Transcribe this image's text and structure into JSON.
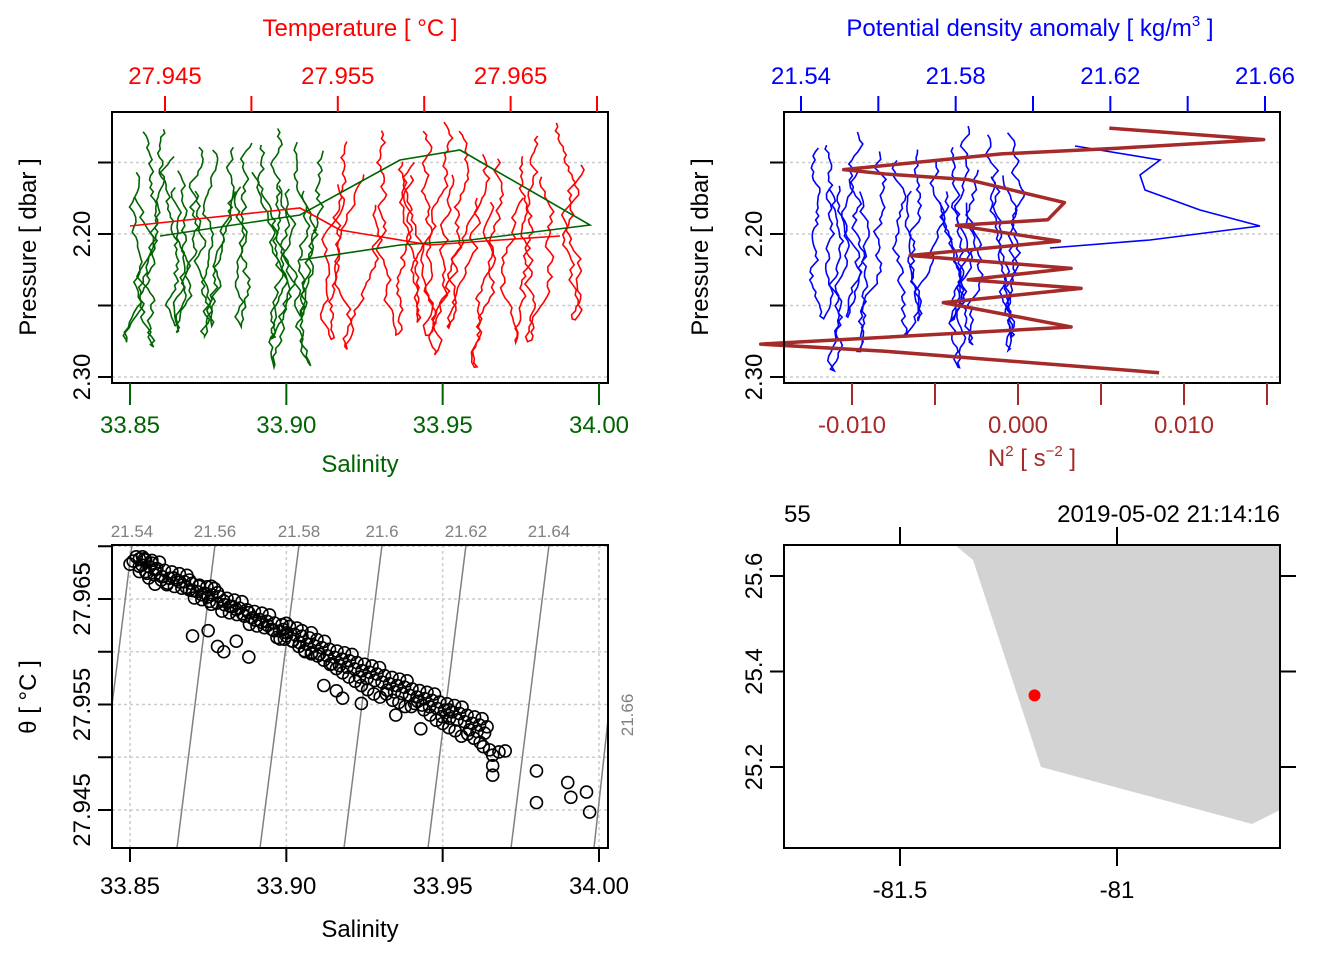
{
  "chart_data": [
    {
      "id": "profile-ts",
      "type": "line",
      "title": "",
      "top_axis_label": "Temperature [ °C ]",
      "top_axis_ticks": [
        "27.945",
        "",
        "27.955",
        "",
        "27.965",
        ""
      ],
      "top_axis_values": [
        27.945,
        27.95,
        27.955,
        27.96,
        27.965,
        27.97
      ],
      "top_axis_color": "#ff0000",
      "xlabel": "Salinity",
      "xlabel_color": "#006400",
      "x_ticks": [
        "33.85",
        "33.90",
        "33.95",
        "34.00"
      ],
      "x_tick_values": [
        33.85,
        33.9,
        33.95,
        34.0
      ],
      "xlim": [
        33.848,
        34.001
      ],
      "ylabel": "Pressure [ dbar ]",
      "y_ticks": [
        "",
        "2.20",
        "",
        "2.30"
      ],
      "y_tick_values": [
        2.15,
        2.2,
        2.25,
        2.3
      ],
      "ylim": [
        2.307,
        2.117
      ],
      "grid": "horizontal-dashed",
      "series": [
        {
          "name": "Salinity",
          "color": "#006400",
          "axis": "bottom"
        },
        {
          "name": "Temperature",
          "color": "#ff0000",
          "axis": "top"
        }
      ]
    },
    {
      "id": "profile-density-n2",
      "type": "line",
      "top_axis_label": "Potential density anomaly [ kg/m³ ]",
      "top_axis_ticks": [
        "21.54",
        "",
        "21.58",
        "",
        "21.62",
        "",
        "21.66"
      ],
      "top_axis_values": [
        21.54,
        21.56,
        21.58,
        21.6,
        21.62,
        21.64,
        21.66
      ],
      "top_axis_color": "#0000ff",
      "xlabel": "N² [ s⁻² ]",
      "xlabel_color": "#a52a2a",
      "x_ticks": [
        "-0.010",
        "",
        "0.000",
        "",
        "0.010",
        ""
      ],
      "x_tick_values": [
        -0.01,
        -0.005,
        0.0,
        0.005,
        0.01,
        0.015
      ],
      "ylabel": "Pressure [ dbar ]",
      "y_ticks": [
        "",
        "2.20",
        "",
        "2.30"
      ],
      "y_tick_values": [
        2.15,
        2.2,
        2.25,
        2.3
      ],
      "grid": "horizontal-dashed",
      "series": [
        {
          "name": "Potential density anomaly",
          "color": "#0000ff",
          "axis": "top"
        },
        {
          "name": "N2",
          "color": "#a52a2a",
          "axis": "bottom",
          "points": [
            [
              0.0055,
              2.126
            ],
            [
              0.0148,
              2.134
            ],
            [
              0.006,
              2.14
            ],
            [
              -0.001,
              2.144
            ],
            [
              -0.0105,
              2.155
            ],
            [
              -0.008,
              2.158
            ],
            [
              -0.003,
              2.162
            ],
            [
              0.0028,
              2.178
            ],
            [
              0.0018,
              2.19
            ],
            [
              -0.0037,
              2.194
            ],
            [
              0.0025,
              2.205
            ],
            [
              -0.0065,
              2.215
            ],
            [
              0.0032,
              2.224
            ],
            [
              -0.003,
              2.232
            ],
            [
              0.0038,
              2.238
            ],
            [
              -0.0045,
              2.248
            ],
            [
              0.0032,
              2.265
            ],
            [
              -0.0155,
              2.277
            ],
            [
              -0.008,
              2.282
            ],
            [
              0.0085,
              2.297
            ]
          ]
        }
      ]
    },
    {
      "id": "ts-diagram",
      "type": "scatter",
      "xlabel": "Salinity",
      "x_ticks": [
        "33.85",
        "33.90",
        "33.95",
        "34.00"
      ],
      "x_tick_values": [
        33.85,
        33.9,
        33.95,
        34.0
      ],
      "xlim": [
        33.844,
        34.002
      ],
      "ylabel": "θ [ °C ]",
      "y_ticks": [
        "",
        "27.965",
        "",
        "27.955",
        "",
        "27.945"
      ],
      "y_tick_values": [
        27.97,
        27.965,
        27.96,
        27.955,
        27.95,
        27.945
      ],
      "ylim": [
        27.9416,
        27.9705
      ],
      "grid": "both-dashed",
      "isopycnal_labels": [
        "21.54",
        "21.56",
        "21.58",
        "21.6",
        "21.62",
        "21.64",
        "21.66"
      ],
      "isopycnal_color": "#808080",
      "points": [
        [
          33.85,
          27.9683
        ],
        [
          33.851,
          27.9686
        ],
        [
          33.852,
          27.969
        ],
        [
          33.853,
          27.9688
        ],
        [
          33.854,
          27.969
        ],
        [
          33.855,
          27.9687
        ],
        [
          33.853,
          27.9681
        ],
        [
          33.855,
          27.9676
        ],
        [
          33.857,
          27.9684
        ],
        [
          33.858,
          27.9678
        ],
        [
          33.856,
          27.967
        ],
        [
          33.858,
          27.9664
        ],
        [
          33.86,
          27.9668
        ],
        [
          33.862,
          27.9665
        ],
        [
          33.864,
          27.967
        ],
        [
          33.866,
          27.9666
        ],
        [
          33.868,
          27.9661
        ],
        [
          33.87,
          27.9658
        ],
        [
          33.869,
          27.9668
        ],
        [
          33.872,
          27.9662
        ],
        [
          33.875,
          27.9652
        ],
        [
          33.876,
          27.9662
        ],
        [
          33.873,
          27.9654
        ],
        [
          33.876,
          27.9645
        ],
        [
          33.878,
          27.9656
        ],
        [
          33.88,
          27.9648
        ],
        [
          33.882,
          27.9643
        ],
        [
          33.884,
          27.964
        ],
        [
          33.886,
          27.9636
        ],
        [
          33.888,
          27.9637
        ],
        [
          33.89,
          27.963
        ],
        [
          33.892,
          27.9628
        ],
        [
          33.894,
          27.9625
        ],
        [
          33.896,
          27.962
        ],
        [
          33.898,
          27.9612
        ],
        [
          33.899,
          27.9621
        ],
        [
          33.9,
          27.9615
        ],
        [
          33.902,
          27.961
        ],
        [
          33.904,
          27.9605
        ],
        [
          33.905,
          27.962
        ],
        [
          33.906,
          27.96
        ],
        [
          33.908,
          27.9598
        ],
        [
          33.91,
          27.9596
        ],
        [
          33.912,
          27.9592
        ],
        [
          33.914,
          27.9588
        ],
        [
          33.916,
          27.9584
        ],
        [
          33.918,
          27.958
        ],
        [
          33.92,
          27.9576
        ],
        [
          33.922,
          27.9572
        ],
        [
          33.924,
          27.9568
        ],
        [
          33.926,
          27.9564
        ],
        [
          33.928,
          27.956
        ],
        [
          33.93,
          27.9557
        ],
        [
          33.932,
          27.956
        ],
        [
          33.934,
          27.9554
        ],
        [
          33.936,
          27.9552
        ],
        [
          33.938,
          27.9548
        ],
        [
          33.94,
          27.9548
        ],
        [
          33.942,
          27.9553
        ],
        [
          33.944,
          27.9545
        ],
        [
          33.946,
          27.954
        ],
        [
          33.948,
          27.9535
        ],
        [
          33.95,
          27.9532
        ],
        [
          33.952,
          27.9528
        ],
        [
          33.954,
          27.9525
        ],
        [
          33.956,
          27.952
        ],
        [
          33.958,
          27.9522
        ],
        [
          33.96,
          27.9518
        ],
        [
          33.962,
          27.9514
        ],
        [
          33.963,
          27.951
        ],
        [
          33.965,
          27.9507
        ],
        [
          33.966,
          27.9502
        ],
        [
          33.968,
          27.9505
        ],
        [
          33.97,
          27.9506
        ],
        [
          33.966,
          27.9492
        ],
        [
          33.966,
          27.9483
        ],
        [
          33.98,
          27.9487
        ],
        [
          33.98,
          27.9457
        ],
        [
          33.99,
          27.9476
        ],
        [
          33.991,
          27.9462
        ],
        [
          33.996,
          27.9467
        ],
        [
          33.997,
          27.9448
        ],
        [
          33.88,
          27.96
        ],
        [
          33.888,
          27.9595
        ],
        [
          33.884,
          27.961
        ],
        [
          33.878,
          27.9605
        ],
        [
          33.875,
          27.962
        ],
        [
          33.87,
          27.9615
        ],
        [
          33.916,
          27.9563
        ],
        [
          33.912,
          27.9568
        ],
        [
          33.918,
          27.9556
        ],
        [
          33.924,
          27.9551
        ],
        [
          33.935,
          27.954
        ],
        [
          33.943,
          27.9527
        ],
        [
          33.952,
          27.9545
        ],
        [
          33.9,
          27.9627
        ],
        [
          33.908,
          27.9618
        ]
      ]
    },
    {
      "id": "station-map",
      "type": "map",
      "top_left_label": "55",
      "top_right_label": "2019-05-02 21:14:16",
      "x_ticks": [
        "-81.5",
        "-81"
      ],
      "x_tick_values": [
        -81.5,
        -81.0
      ],
      "y_ticks": [
        "25.2",
        "25.4",
        "25.6"
      ],
      "y_tick_values": [
        25.2,
        25.4,
        25.6
      ],
      "xlim": [
        -81.77,
        -80.63
      ],
      "ylim": [
        25.04,
        25.67
      ],
      "land_color": "#d3d3d3",
      "station": {
        "lon": -81.19,
        "lat": 25.35,
        "color": "#ff0000"
      },
      "land_polygon": [
        [
          -81.37,
          25.67
        ],
        [
          -81.33,
          25.64
        ],
        [
          -81.17,
          25.2
        ],
        [
          -80.7,
          25.08
        ],
        [
          -80.63,
          25.1
        ],
        [
          -80.63,
          25.67
        ]
      ]
    }
  ]
}
